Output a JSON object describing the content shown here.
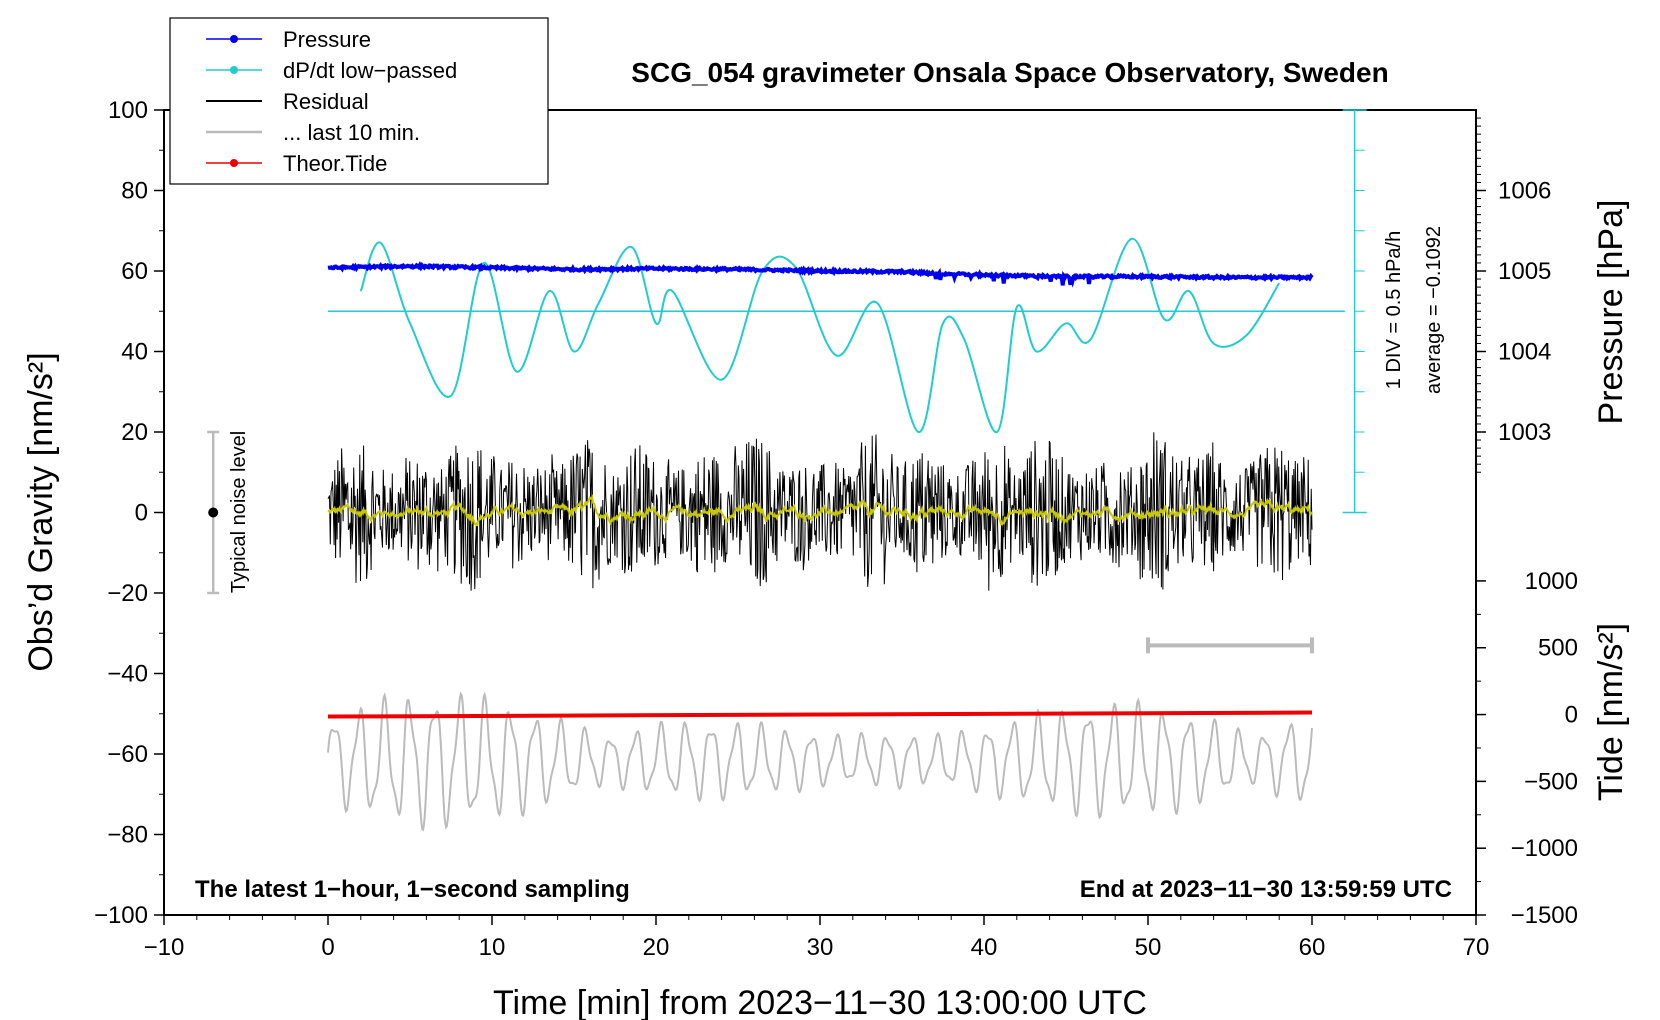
{
  "chart_data": {
    "type": "line",
    "title": "SCG_054 gravimeter Onsala Space Observatory, Sweden",
    "xlabel": "Time [min] from 2023−11−30 13:00:00 UTC",
    "ylabel_left": "Obs’d Gravity [nm/s²]",
    "ylabel_right_top": "Pressure [hPa]",
    "ylabel_right_bottom": "Tide [nm/s²]",
    "xlim": [
      -10,
      70
    ],
    "ylim_left": [
      -100,
      100
    ],
    "x_ticks": [
      -10,
      0,
      10,
      20,
      30,
      40,
      50,
      60,
      70
    ],
    "x_tick_labels": [
      "−10",
      "0",
      "10",
      "20",
      "30",
      "40",
      "50",
      "60",
      "70"
    ],
    "y_ticks_left": [
      -100,
      -80,
      -60,
      -40,
      -20,
      0,
      20,
      40,
      60,
      80,
      100
    ],
    "y_tick_labels_left": [
      "−100",
      "−80",
      "−60",
      "−40",
      "−20",
      "0",
      "20",
      "40",
      "60",
      "80",
      "100"
    ],
    "pressure_ticks": [
      1003,
      1004,
      1005,
      1006
    ],
    "pressure_tick_labels": [
      "1003",
      "1004",
      "1005",
      "1006"
    ],
    "tide_ticks": [
      1000,
      500,
      0,
      -500,
      -1000,
      -1500
    ],
    "tide_tick_labels": [
      "1000",
      "500",
      "0",
      "−500",
      "−1000",
      "−1500"
    ],
    "legend": {
      "placement": "top-left",
      "entries": [
        {
          "label": "Pressure",
          "color": "#0000ee",
          "style": "line-dot"
        },
        {
          "label": "dP/dt low−passed",
          "color": "#22cccc",
          "style": "line-dot"
        },
        {
          "label": "Residual",
          "color": "#000000",
          "style": "line"
        },
        {
          "label": "... last 10 min.",
          "color": "#bbbbbb",
          "style": "line"
        },
        {
          "label": "Theor.Tide",
          "color": "#ee0000",
          "style": "line-dot"
        }
      ]
    },
    "annotations": {
      "bottom_left": "The latest 1−hour, 1−second sampling",
      "bottom_right": "End at 2023−11−30 13:59:59 UTC",
      "noise": "Typical noise level",
      "dpdt_div": "1 DIV = 0.5 hPa/h",
      "dpdt_avg": "average = −0.1092"
    },
    "noise_bar": {
      "x": -7,
      "center": 0,
      "range": [
        -20,
        20
      ]
    },
    "last10_bar": {
      "range_min": [
        50,
        60
      ]
    },
    "series": [
      {
        "name": "Pressure",
        "unit": "hPa",
        "color": "#0000ee",
        "x": [
          0,
          5,
          10,
          15,
          20,
          25,
          30,
          35,
          37,
          40,
          45,
          50,
          55,
          60
        ],
        "values": [
          1005.04,
          1005.06,
          1005.04,
          1005.02,
          1005.03,
          1005.02,
          1005.0,
          1004.99,
          1004.97,
          1004.95,
          1004.93,
          1004.93,
          1004.92,
          1004.92
        ]
      },
      {
        "name": "dP/dt low−passed",
        "unit": "nm/s² axis equivalent",
        "color": "#22cccc",
        "x": [
          2,
          3.2,
          5,
          7.5,
          9.5,
          11.5,
          13.5,
          15,
          16.5,
          18.5,
          20,
          21,
          24,
          26.5,
          28.5,
          31,
          33.5,
          36,
          37.5,
          38.8,
          40.8,
          42,
          43.2,
          45,
          46.5,
          49,
          51,
          52.5,
          54,
          56,
          58
        ],
        "values": [
          55,
          67,
          47,
          29,
          62,
          35,
          55,
          40,
          52,
          66,
          47,
          55,
          33,
          60,
          61,
          39,
          52,
          20,
          47,
          43,
          20,
          51,
          40,
          47,
          43,
          68,
          48,
          55,
          42,
          44,
          57
        ]
      },
      {
        "name": "Residual",
        "unit": "nm/s²",
        "color": "#000000",
        "x": [
          0,
          60
        ],
        "amplitude_approx": 20
      },
      {
        "name": "... last 10 min.",
        "unit": "nm/s²",
        "color": "#bbbbbb",
        "x": [
          0,
          60
        ],
        "range_approx": [
          -80,
          -43
        ]
      },
      {
        "name": "Theor.Tide",
        "unit": "nm/s²",
        "color": "#ee0000",
        "x": [
          0,
          60
        ],
        "values": [
          -15,
          15
        ]
      }
    ]
  }
}
